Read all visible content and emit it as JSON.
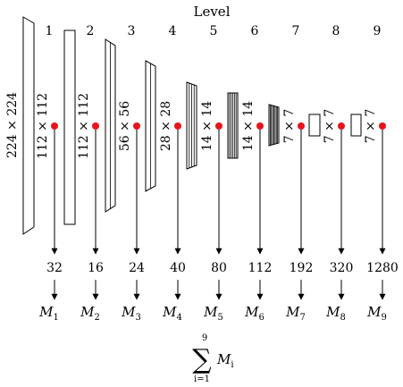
{
  "header": {
    "title": "Level"
  },
  "levels": [
    {
      "level": "1",
      "resolution": "112 × 112",
      "channels": "32",
      "model": "M",
      "sub": "1"
    },
    {
      "level": "2",
      "resolution": "112 × 112",
      "channels": "16",
      "model": "M",
      "sub": "2"
    },
    {
      "level": "3",
      "resolution": "56 × 56",
      "channels": "24",
      "model": "M",
      "sub": "3"
    },
    {
      "level": "4",
      "resolution": "28 × 28",
      "channels": "40",
      "model": "M",
      "sub": "4"
    },
    {
      "level": "5",
      "resolution": "14 × 14",
      "channels": "80",
      "model": "M",
      "sub": "5"
    },
    {
      "level": "6",
      "resolution": "14 × 14",
      "channels": "112",
      "model": "M",
      "sub": "6"
    },
    {
      "level": "7",
      "resolution": "7 × 7",
      "channels": "192",
      "model": "M",
      "sub": "7"
    },
    {
      "level": "8",
      "resolution": "7 × 7",
      "channels": "320",
      "model": "M",
      "sub": "8"
    },
    {
      "level": "9",
      "resolution": "7 × 7",
      "channels": "1280",
      "model": "M",
      "sub": "9"
    }
  ],
  "input": {
    "resolution": "224 × 224"
  },
  "sum": {
    "symbol": "∑",
    "upper": "9",
    "lower": "i=1",
    "term": "M",
    "term_sub": "i"
  },
  "colors": {
    "tap_point": "#e8141c",
    "stroke": "#000000"
  }
}
